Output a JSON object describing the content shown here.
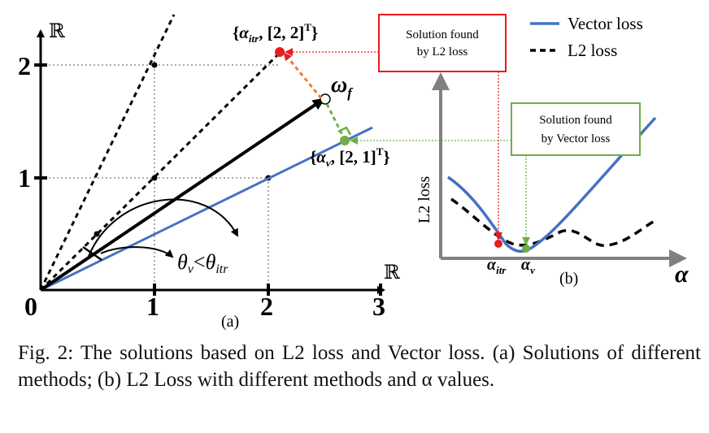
{
  "panel_a": {
    "axis_symbol_y": "ℝ",
    "axis_symbol_x": "ℝ",
    "x_ticks": [
      "0",
      "1",
      "2",
      "3"
    ],
    "y_ticks": [
      "1",
      "2"
    ],
    "label": "(a)",
    "point_itr_label": "{α_itr, [2, 2]ᵀ}",
    "point_v_label": "{α_v, [2, 1]ᵀ}",
    "target_label": "ω_f",
    "angle_label": "θ_v<θ_itr",
    "colors": {
      "blue": "#4472c4",
      "green": "#70ad47",
      "orange": "#ed7d31",
      "red": "#e81c1c"
    }
  },
  "panel_b": {
    "legend": {
      "vector": "Vector loss",
      "l2": "L2 loss"
    },
    "box_red": [
      "Solution found",
      "by L2 loss"
    ],
    "box_green": [
      "Solution found",
      "by Vector loss"
    ],
    "ylabel": "L2 loss",
    "xlabel": "α",
    "alpha_itr": "α_itr",
    "alpha_v": "α_v",
    "label": "(b)"
  },
  "caption": "Fig. 2: The solutions based on L2 loss and Vector loss. (a) Solutions of different methods; (b) L2 Loss with different methods and α values."
}
